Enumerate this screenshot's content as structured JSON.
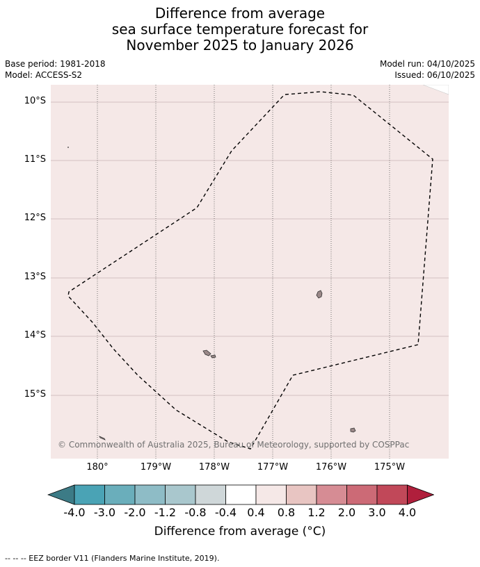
{
  "title": {
    "line1": "Difference from average",
    "line2": "sea surface temperature forecast for",
    "line3": "November 2025 to January 2026"
  },
  "meta": {
    "base_period": "Base period: 1981-2018",
    "model": "Model: ACCESS-S2",
    "model_run": "Model run: 04/10/2025",
    "issued": "Issued: 06/10/2025"
  },
  "map": {
    "background_color": "#f5e8e7",
    "extent": {
      "lon_min": -180.8,
      "lon_max": -174.0,
      "lat_min": -16.1,
      "lat_max": -9.7
    },
    "lat_labels": [
      "10°S",
      "11°S",
      "12°S",
      "13°S",
      "14°S",
      "15°S"
    ],
    "lon_labels": [
      "180°",
      "179°W",
      "178°W",
      "177°W",
      "176°W",
      "175°W"
    ],
    "copyright": "© Commonwealth of Australia 2025, Bureau of Meteorology, supported by COSPPac"
  },
  "colorbar": {
    "title": "Difference from average (°C)",
    "tick_labels": [
      "-4.0",
      "-3.0",
      "-2.0",
      "-1.2",
      "-0.8",
      "-0.4",
      "0.4",
      "0.8",
      "1.2",
      "2.0",
      "3.0",
      "4.0"
    ],
    "colors": [
      "#3c7b86",
      "#4aa3b5",
      "#6aaebb",
      "#8ebcc6",
      "#a9c7cd",
      "#cfd7d9",
      "#ffffff",
      "#f5e8e7",
      "#e8c5c2",
      "#d68c94",
      "#cc6a76",
      "#c14859",
      "#b01f3c"
    ]
  },
  "footnote": "--  --  -- EEZ border V11 (Flanders Marine Institute, 2019)."
}
